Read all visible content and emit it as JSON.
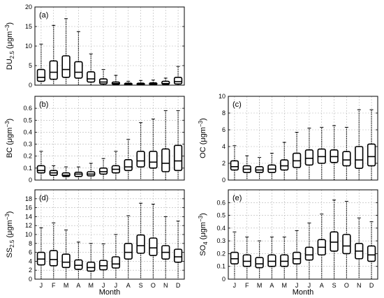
{
  "figure": {
    "x_title": "Month",
    "months": [
      "J",
      "F",
      "M",
      "A",
      "M",
      "J",
      "J",
      "A",
      "S",
      "O",
      "N",
      "D"
    ]
  },
  "chart_data": [
    {
      "type": "box",
      "panel": "(a)",
      "ylabel": "DU2.5 (μgm⁻³)",
      "ylabel_parts": {
        "main": "DU",
        "sub": "2.5",
        "unit_pre": " (μgm",
        "sup": "−3",
        "unit_post": ")"
      },
      "ylim": [
        0,
        20
      ],
      "yticks": [
        0,
        5,
        10,
        15,
        20
      ],
      "categories": [
        "J",
        "F",
        "M",
        "A",
        "M",
        "J",
        "J",
        "A",
        "S",
        "O",
        "N",
        "D"
      ],
      "boxes": [
        {
          "min": 0,
          "q1": 1.0,
          "median": 2.0,
          "q3": 4.0,
          "max": 10.5
        },
        {
          "min": 0,
          "q1": 1.5,
          "median": 3.3,
          "q3": 6.2,
          "max": 15.3
        },
        {
          "min": 0,
          "q1": 2.0,
          "median": 4.0,
          "q3": 7.5,
          "max": 17.0
        },
        {
          "min": 0,
          "q1": 1.8,
          "median": 3.3,
          "q3": 6.0,
          "max": 13.7
        },
        {
          "min": 0,
          "q1": 0.8,
          "median": 1.6,
          "q3": 3.4,
          "max": 8.0
        },
        {
          "min": 0,
          "q1": 0.3,
          "median": 0.8,
          "q3": 1.6,
          "max": 4.0
        },
        {
          "min": 0,
          "q1": 0.2,
          "median": 0.4,
          "q3": 0.8,
          "max": 2.5
        },
        {
          "min": 0,
          "q1": 0.1,
          "median": 0.3,
          "q3": 0.5,
          "max": 1.0
        },
        {
          "min": 0,
          "q1": 0.1,
          "median": 0.3,
          "q3": 0.5,
          "max": 1.2
        },
        {
          "min": 0,
          "q1": 0.1,
          "median": 0.3,
          "q3": 0.6,
          "max": 1.3
        },
        {
          "min": 0,
          "q1": 0.2,
          "median": 0.4,
          "q3": 1.0,
          "max": 1.8
        },
        {
          "min": 0,
          "q1": 0.3,
          "median": 0.9,
          "q3": 2.0,
          "max": 4.8
        }
      ]
    },
    {
      "type": "box",
      "panel": "(b)",
      "ylabel": "BC (μgm⁻³)",
      "ylabel_parts": {
        "main": "BC",
        "sub": "",
        "unit_pre": " (μgm",
        "sup": "−3",
        "unit_post": ")"
      },
      "ylim": [
        0,
        0.7
      ],
      "yticks": [
        0,
        0.1,
        0.2,
        0.3,
        0.4,
        0.5,
        0.6
      ],
      "categories": [
        "J",
        "F",
        "M",
        "A",
        "M",
        "J",
        "J",
        "A",
        "S",
        "O",
        "N",
        "D"
      ],
      "boxes": [
        {
          "min": 0,
          "q1": 0.06,
          "median": 0.08,
          "q3": 0.12,
          "max": 0.24
        },
        {
          "min": 0,
          "q1": 0.04,
          "median": 0.06,
          "q3": 0.08,
          "max": 0.12
        },
        {
          "min": 0,
          "q1": 0.03,
          "median": 0.04,
          "q3": 0.06,
          "max": 0.11
        },
        {
          "min": 0,
          "q1": 0.03,
          "median": 0.05,
          "q3": 0.065,
          "max": 0.11
        },
        {
          "min": 0,
          "q1": 0.035,
          "median": 0.05,
          "q3": 0.07,
          "max": 0.14
        },
        {
          "min": 0,
          "q1": 0.05,
          "median": 0.07,
          "q3": 0.1,
          "max": 0.18
        },
        {
          "min": 0,
          "q1": 0.06,
          "median": 0.09,
          "q3": 0.12,
          "max": 0.24
        },
        {
          "min": 0,
          "q1": 0.08,
          "median": 0.11,
          "q3": 0.17,
          "max": 0.34
        },
        {
          "min": 0,
          "q1": 0.11,
          "median": 0.16,
          "q3": 0.24,
          "max": 0.48
        },
        {
          "min": 0,
          "q1": 0.1,
          "median": 0.15,
          "q3": 0.24,
          "max": 0.51
        },
        {
          "min": 0,
          "q1": 0.07,
          "median": 0.14,
          "q3": 0.26,
          "max": 0.58
        },
        {
          "min": 0,
          "q1": 0.08,
          "median": 0.16,
          "q3": 0.29,
          "max": 0.58
        }
      ]
    },
    {
      "type": "box",
      "panel": "(c)",
      "ylabel": "OC (μgm⁻³)",
      "ylabel_parts": {
        "main": "OC",
        "sub": "",
        "unit_pre": " (μgm",
        "sup": "−3",
        "unit_post": ")"
      },
      "ylim": [
        0,
        10
      ],
      "yticks": [
        0,
        2,
        4,
        6,
        8,
        10
      ],
      "categories": [
        "J",
        "F",
        "M",
        "A",
        "M",
        "J",
        "J",
        "A",
        "S",
        "O",
        "N",
        "D"
      ],
      "boxes": [
        {
          "min": 0,
          "q1": 1.2,
          "median": 1.6,
          "q3": 2.3,
          "max": 4.1
        },
        {
          "min": 0,
          "q1": 0.9,
          "median": 1.3,
          "q3": 1.7,
          "max": 2.9
        },
        {
          "min": 0,
          "q1": 0.9,
          "median": 1.2,
          "q3": 1.6,
          "max": 2.7
        },
        {
          "min": 0,
          "q1": 0.9,
          "median": 1.3,
          "q3": 1.8,
          "max": 3.2
        },
        {
          "min": 0,
          "q1": 1.2,
          "median": 1.7,
          "q3": 2.4,
          "max": 4.5
        },
        {
          "min": 0,
          "q1": 1.5,
          "median": 2.3,
          "q3": 3.2,
          "max": 5.7
        },
        {
          "min": 0,
          "q1": 1.8,
          "median": 2.6,
          "q3": 3.6,
          "max": 6.2
        },
        {
          "min": 0,
          "q1": 2.0,
          "median": 2.8,
          "q3": 3.7,
          "max": 6.3
        },
        {
          "min": 0,
          "q1": 2.1,
          "median": 2.8,
          "q3": 3.6,
          "max": 6.5
        },
        {
          "min": 0,
          "q1": 1.7,
          "median": 2.4,
          "q3": 3.4,
          "max": 6.3
        },
        {
          "min": 0,
          "q1": 1.4,
          "median": 2.4,
          "q3": 4.0,
          "max": 8.4
        },
        {
          "min": 0,
          "q1": 1.7,
          "median": 2.8,
          "q3": 4.3,
          "max": 8.4
        }
      ]
    },
    {
      "type": "box",
      "panel": "(d)",
      "ylabel": "SS2.5 (μgm⁻³)",
      "ylabel_parts": {
        "main": "SS",
        "sub": "2.5",
        "unit_pre": " (μgm",
        "sup": "−3",
        "unit_post": ")"
      },
      "ylim": [
        0,
        20
      ],
      "yticks": [
        0,
        2,
        4,
        6,
        8,
        10,
        12,
        14,
        16,
        18
      ],
      "categories": [
        "J",
        "F",
        "M",
        "A",
        "M",
        "J",
        "J",
        "A",
        "S",
        "O",
        "N",
        "D"
      ],
      "boxes": [
        {
          "min": 0,
          "q1": 3.2,
          "median": 4.5,
          "q3": 6.0,
          "max": 11.5
        },
        {
          "min": 0,
          "q1": 3.0,
          "median": 4.4,
          "q3": 6.4,
          "max": 12.6
        },
        {
          "min": 0,
          "q1": 2.6,
          "median": 3.8,
          "q3": 5.6,
          "max": 11.0
        },
        {
          "min": 0,
          "q1": 2.2,
          "median": 3.1,
          "q3": 4.3,
          "max": 8.3
        },
        {
          "min": 0,
          "q1": 1.8,
          "median": 2.6,
          "q3": 3.8,
          "max": 8.0
        },
        {
          "min": 0,
          "q1": 2.1,
          "median": 3.0,
          "q3": 4.2,
          "max": 7.9
        },
        {
          "min": 0,
          "q1": 2.5,
          "median": 3.4,
          "q3": 5.0,
          "max": 10.0
        },
        {
          "min": 0,
          "q1": 4.5,
          "median": 6.0,
          "q3": 8.0,
          "max": 14.2
        },
        {
          "min": 0,
          "q1": 5.8,
          "median": 7.5,
          "q3": 9.9,
          "max": 17.0
        },
        {
          "min": 0,
          "q1": 5.3,
          "median": 7.0,
          "q3": 9.2,
          "max": 16.8
        },
        {
          "min": 0,
          "q1": 4.5,
          "median": 6.0,
          "q3": 7.5,
          "max": 14.0
        },
        {
          "min": 0,
          "q1": 3.8,
          "median": 5.0,
          "q3": 6.7,
          "max": 13.0
        }
      ]
    },
    {
      "type": "box",
      "panel": "(e)",
      "ylabel": "SO4 (μgm⁻³)",
      "ylabel_parts": {
        "main": "SO",
        "sub": "4",
        "unit_pre": " (μgm",
        "sup": "−3",
        "unit_post": ")"
      },
      "ylim": [
        0,
        0.7
      ],
      "yticks": [
        0,
        0.1,
        0.2,
        0.3,
        0.4,
        0.5,
        0.6
      ],
      "categories": [
        "J",
        "F",
        "M",
        "A",
        "M",
        "J",
        "J",
        "A",
        "S",
        "O",
        "N",
        "D"
      ],
      "boxes": [
        {
          "min": 0,
          "q1": 0.12,
          "median": 0.16,
          "q3": 0.21,
          "max": 0.37
        },
        {
          "min": 0,
          "q1": 0.1,
          "median": 0.14,
          "q3": 0.19,
          "max": 0.33
        },
        {
          "min": 0,
          "q1": 0.09,
          "median": 0.12,
          "q3": 0.17,
          "max": 0.3
        },
        {
          "min": 0,
          "q1": 0.1,
          "median": 0.14,
          "q3": 0.19,
          "max": 0.33
        },
        {
          "min": 0,
          "q1": 0.1,
          "median": 0.14,
          "q3": 0.19,
          "max": 0.33
        },
        {
          "min": 0,
          "q1": 0.12,
          "median": 0.16,
          "q3": 0.21,
          "max": 0.38
        },
        {
          "min": 0,
          "q1": 0.15,
          "median": 0.19,
          "q3": 0.25,
          "max": 0.44
        },
        {
          "min": 0,
          "q1": 0.19,
          "median": 0.25,
          "q3": 0.31,
          "max": 0.51
        },
        {
          "min": 0,
          "q1": 0.22,
          "median": 0.29,
          "q3": 0.37,
          "max": 0.62
        },
        {
          "min": 0,
          "q1": 0.2,
          "median": 0.26,
          "q3": 0.35,
          "max": 0.61
        },
        {
          "min": 0,
          "q1": 0.16,
          "median": 0.22,
          "q3": 0.28,
          "max": 0.48
        },
        {
          "min": 0,
          "q1": 0.14,
          "median": 0.19,
          "q3": 0.26,
          "max": 0.45
        }
      ]
    }
  ]
}
